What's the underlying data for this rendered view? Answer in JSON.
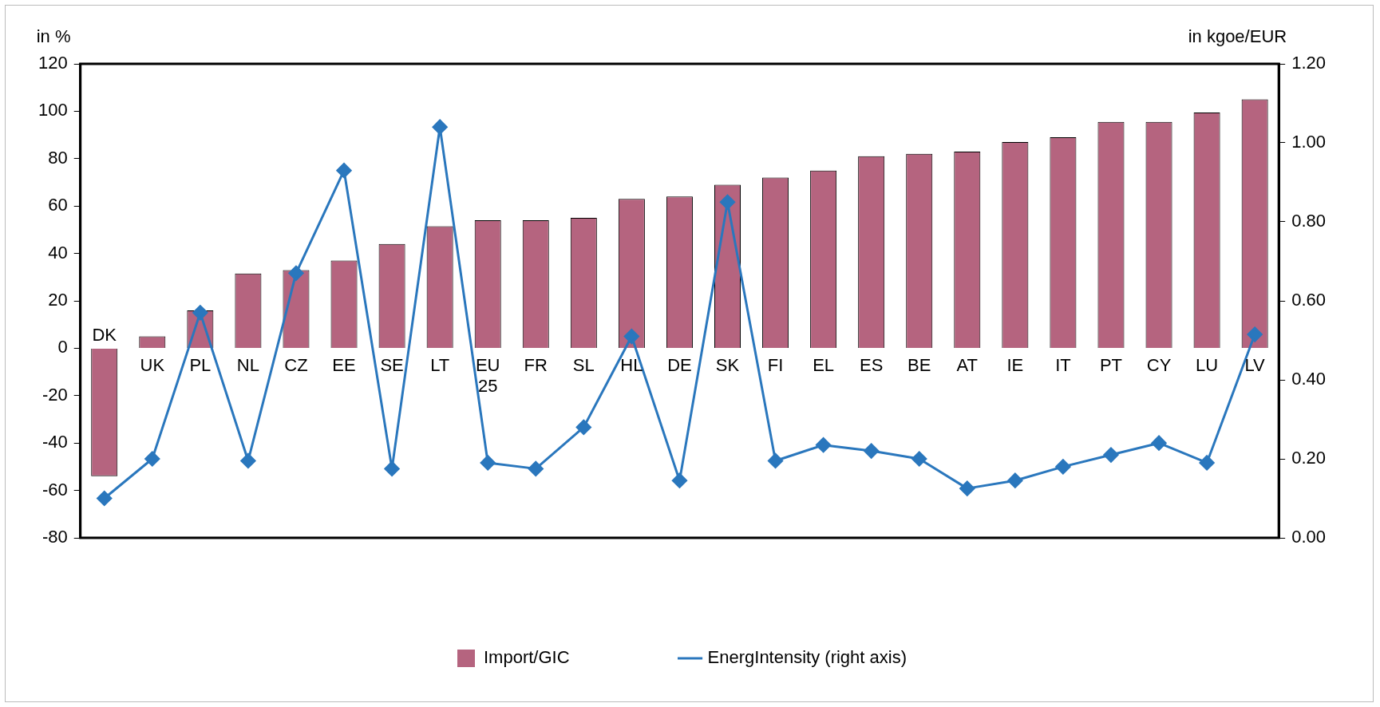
{
  "chart_data": {
    "type": "bar",
    "ylabel": "in %",
    "y2label": "in kgoe/EUR",
    "categories": [
      "DK",
      "UK",
      "PL",
      "NL",
      "CZ",
      "EE",
      "SE",
      "LT",
      "EU 25",
      "FR",
      "SL",
      "HL",
      "DE",
      "SK",
      "FI",
      "EL",
      "ES",
      "BE",
      "AT",
      "IE",
      "IT",
      "PT",
      "CY",
      "LU",
      "LV"
    ],
    "series": [
      {
        "name": "Import/GIC",
        "color": "#b5647f",
        "values": [
          -54,
          5,
          16,
          31.5,
          33,
          37,
          44,
          51.5,
          54,
          54,
          55,
          63,
          64,
          69,
          72,
          75,
          81,
          82,
          83,
          87,
          89,
          95.5,
          95.5,
          99.5,
          105
        ]
      },
      {
        "name": "EnergIntensity (right axis)",
        "type": "line",
        "axis": "y2",
        "color": "#2a77bd",
        "marker": "diamond",
        "values": [
          0.1,
          0.2,
          0.57,
          0.195,
          0.67,
          0.93,
          0.175,
          1.04,
          0.19,
          0.175,
          0.28,
          0.51,
          0.145,
          0.85,
          0.195,
          0.235,
          0.22,
          0.2,
          0.125,
          0.145,
          0.18,
          0.21,
          0.24,
          0.19,
          0.515
        ]
      }
    ],
    "ylim": [
      -80,
      120
    ],
    "yticks": [
      -80,
      -60,
      -40,
      -20,
      0,
      20,
      40,
      60,
      80,
      100,
      120
    ],
    "y2lim": [
      0,
      1.2
    ],
    "y2ticks": [
      {
        "value": 0,
        "label": "0.00"
      },
      {
        "value": 0.2,
        "label": "0.20"
      },
      {
        "value": 0.4,
        "label": "0.40"
      },
      {
        "value": 0.6,
        "label": "0.60"
      },
      {
        "value": 0.8,
        "label": "0.80"
      },
      {
        "value": 1,
        "label": "1.00"
      },
      {
        "value": 1.2,
        "label": "1.20"
      }
    ],
    "grid": false,
    "legend": "bottom"
  }
}
